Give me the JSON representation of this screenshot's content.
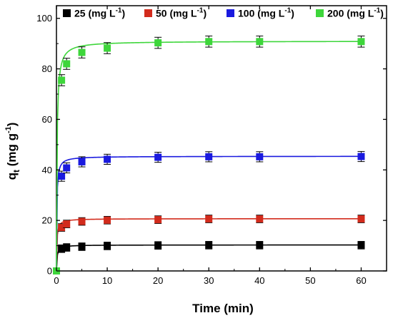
{
  "chart_data": {
    "type": "scatter",
    "xlabel": "Time (min)",
    "ylabel_main": "q",
    "ylabel_sub": "t",
    "ylabel_rest": " (mg g",
    "ylabel_sup": "-1",
    "ylabel_close": ")",
    "xlim": [
      0,
      65
    ],
    "ylim": [
      0,
      105
    ],
    "xticks": [
      0,
      10,
      20,
      30,
      40,
      50,
      60
    ],
    "yticks": [
      0,
      20,
      40,
      60,
      80,
      100
    ],
    "x": [
      0,
      1,
      2,
      5,
      10,
      20,
      30,
      40,
      60
    ],
    "legend_position": "top",
    "fits_shown": true,
    "error_bars": true,
    "series": [
      {
        "name_main": "25 (mg L",
        "name_sup": "-1",
        "name_close": ")",
        "color": "#000000",
        "values": [
          0,
          8.8,
          9.3,
          9.6,
          9.9,
          10.1,
          10.2,
          10.2,
          10.2
        ],
        "error": 1.5,
        "fit_qe": 10.3,
        "fit_k": 0.8
      },
      {
        "name_main": "50 (mg L",
        "name_sup": "-1",
        "name_close": ")",
        "color": "#d22b1c",
        "values": [
          0,
          17.2,
          18.6,
          19.6,
          20.1,
          20.3,
          20.6,
          20.6,
          20.6
        ],
        "error": 1.5,
        "fit_qe": 20.7,
        "fit_k": 0.55
      },
      {
        "name_main": "100 (mg L",
        "name_sup": "-1",
        "name_close": ")",
        "color": "#1a1adf",
        "values": [
          0,
          37.5,
          40.8,
          43.2,
          44.2,
          45.0,
          45.2,
          45.2,
          45.3
        ],
        "error": 2.0,
        "fit_qe": 45.4,
        "fit_k": 0.3
      },
      {
        "name_main": "200 (mg L",
        "name_sup": "-1",
        "name_close": ")",
        "color": "#3ed63b",
        "values": [
          0,
          75.5,
          82.0,
          86.5,
          88.2,
          90.3,
          90.8,
          90.8,
          90.8
        ],
        "error": 2.2,
        "fit_qe": 91.0,
        "fit_k": 0.1
      }
    ]
  }
}
